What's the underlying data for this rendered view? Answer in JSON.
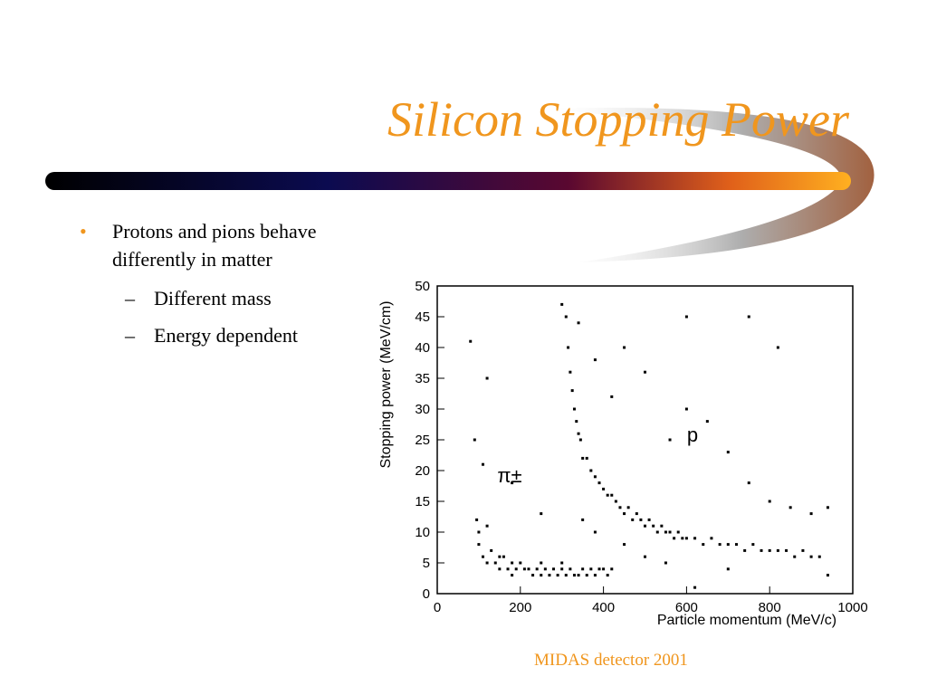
{
  "title": "Silicon Stopping Power",
  "bullets": [
    {
      "text": "Protons and pions behave differently in matter",
      "sub": [
        "Different mass",
        "Energy dependent"
      ]
    }
  ],
  "caption": "MIDAS detector 2001",
  "chart_data": {
    "type": "scatter",
    "xlabel": "Particle momentum (MeV/c)",
    "ylabel": "Stopping power (MeV/cm)",
    "annotations": [
      "p",
      "π±"
    ],
    "color": "#000000",
    "xlim": [
      0,
      1000
    ],
    "ylim": [
      0,
      50
    ],
    "xticks": [
      0,
      200,
      400,
      600,
      800,
      1000
    ],
    "yticks": [
      0,
      5,
      10,
      15,
      20,
      25,
      30,
      35,
      40,
      45,
      50
    ],
    "x": [
      100,
      110,
      120,
      130,
      140,
      150,
      160,
      170,
      180,
      190,
      200,
      210,
      220,
      230,
      240,
      250,
      260,
      270,
      280,
      290,
      300,
      310,
      320,
      330,
      340,
      350,
      360,
      370,
      380,
      390,
      400,
      410,
      420,
      100,
      120,
      95,
      150,
      180,
      250,
      300,
      310,
      315,
      320,
      325,
      330,
      335,
      340,
      345,
      350,
      360,
      370,
      380,
      390,
      400,
      410,
      420,
      430,
      440,
      450,
      460,
      470,
      480,
      490,
      500,
      510,
      520,
      530,
      540,
      550,
      560,
      570,
      580,
      590,
      600,
      620,
      640,
      660,
      680,
      700,
      720,
      740,
      760,
      780,
      800,
      820,
      840,
      860,
      880,
      900,
      920,
      80,
      120,
      90,
      110,
      300,
      340,
      380,
      420,
      450,
      500,
      560,
      600,
      650,
      700,
      750,
      800,
      850,
      900,
      600,
      750,
      820,
      380,
      450,
      500,
      550,
      350,
      700,
      620,
      180,
      250,
      940,
      940
    ],
    "values": [
      8,
      6,
      5,
      7,
      5,
      4,
      6,
      4,
      5,
      4,
      5,
      4,
      4,
      3,
      4,
      3,
      4,
      3,
      4,
      3,
      4,
      3,
      4,
      3,
      3,
      4,
      3,
      4,
      3,
      4,
      4,
      3,
      4,
      10,
      11,
      12,
      6,
      3,
      5,
      5,
      45,
      40,
      36,
      33,
      30,
      28,
      26,
      25,
      22,
      22,
      20,
      19,
      18,
      17,
      16,
      16,
      15,
      14,
      13,
      14,
      12,
      13,
      12,
      11,
      12,
      11,
      10,
      11,
      10,
      10,
      9,
      10,
      9,
      9,
      9,
      8,
      9,
      8,
      8,
      8,
      7,
      8,
      7,
      7,
      7,
      7,
      6,
      7,
      6,
      6,
      41,
      35,
      25,
      21,
      47,
      44,
      38,
      32,
      40,
      36,
      25,
      30,
      28,
      23,
      18,
      15,
      14,
      13,
      45,
      45,
      40,
      10,
      8,
      6,
      5,
      12,
      4,
      1,
      18,
      13,
      14,
      3
    ]
  }
}
